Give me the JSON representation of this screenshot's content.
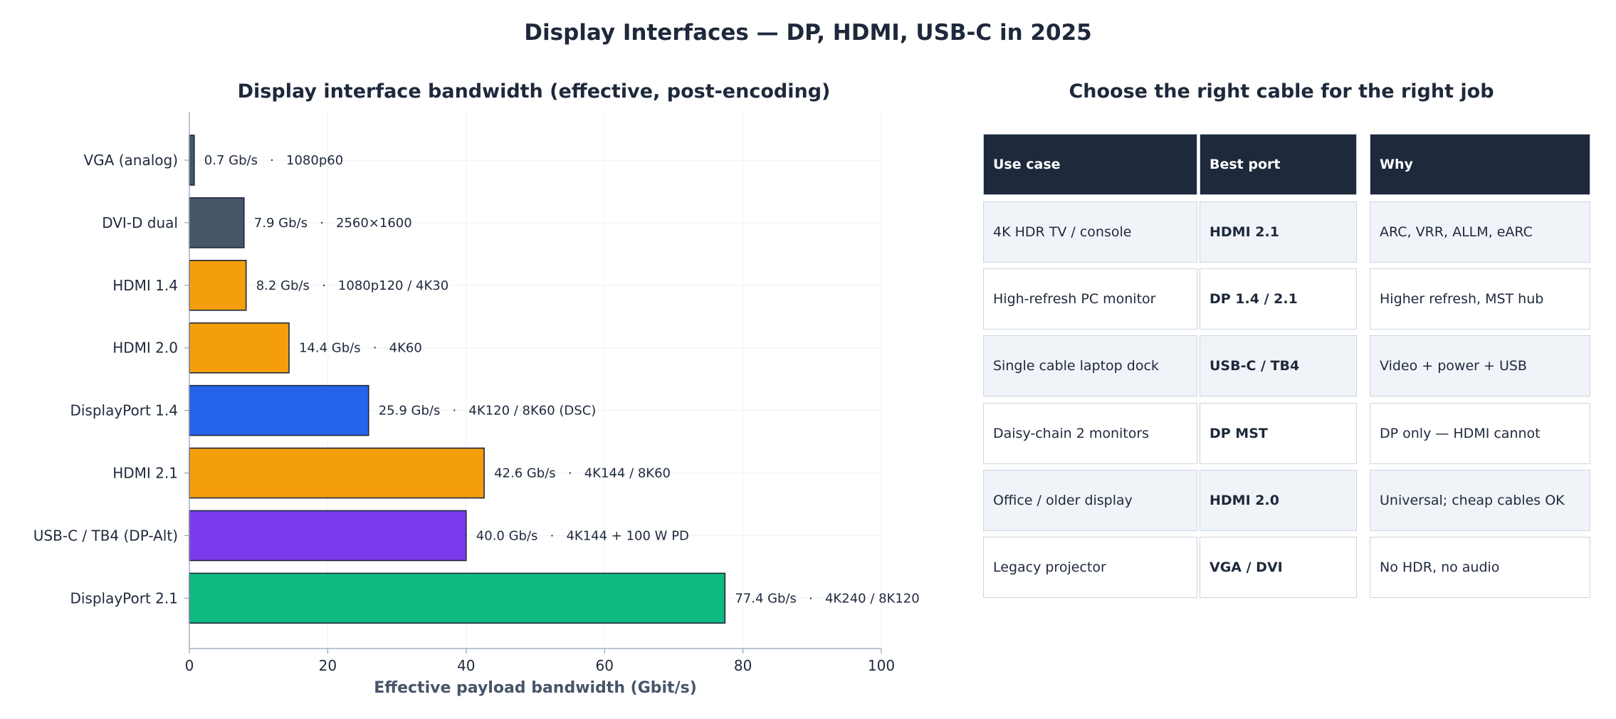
{
  "suptitle": "Display Interfaces — DP, HDMI, USB-C in 2025",
  "chart_data": {
    "type": "bar",
    "orientation": "horizontal",
    "title": "Display interface bandwidth (effective, post-encoding)",
    "xlabel": "Effective payload bandwidth (Gbit/s)",
    "ylabel": "",
    "xlim": [
      0,
      100
    ],
    "xticks": [
      "0",
      "20",
      "40",
      "60",
      "80",
      "100"
    ],
    "grid": true,
    "categories": [
      "VGA (analog)",
      "DVI-D dual",
      "HDMI 1.4",
      "HDMI 2.0",
      "DisplayPort 1.4",
      "HDMI 2.1",
      "USB-C / TB4 (DP-Alt)",
      "DisplayPort 2.1"
    ],
    "values": [
      0.7,
      7.9,
      8.2,
      14.4,
      25.9,
      42.6,
      40.0,
      77.4
    ],
    "labels": [
      "0.7 Gb/s   ·   1080p60",
      "7.9 Gb/s   ·   2560×1600",
      "8.2 Gb/s   ·   1080p120 / 4K30",
      "14.4 Gb/s   ·   4K60",
      "25.9 Gb/s   ·   4K120 / 8K60 (DSC)",
      "42.6 Gb/s   ·   4K144 / 8K60",
      "40.0 Gb/s   ·   4K144 + 100 W PD",
      "77.4 Gb/s   ·   4K240 / 8K120"
    ],
    "colors": [
      "#475569",
      "#475569",
      "#f59e0b",
      "#f59e0b",
      "#2563eb",
      "#f59e0b",
      "#7c3aed",
      "#10b981"
    ]
  },
  "table": {
    "title": "Choose the right cable for the right job",
    "headers": [
      "Use case",
      "Best port",
      "Why"
    ],
    "rows": [
      [
        "4K HDR TV / console",
        "HDMI 2.1",
        "ARC, VRR, ALLM, eARC"
      ],
      [
        "High-refresh PC monitor",
        "DP 1.4 / 2.1",
        "Higher refresh, MST hub"
      ],
      [
        "Single cable laptop dock",
        "USB-C / TB4",
        "Video + power + USB"
      ],
      [
        "Daisy-chain 2 monitors",
        "DP MST",
        "DP only — HDMI cannot"
      ],
      [
        "Office / older display",
        "HDMI 2.0",
        "Universal; cheap cables OK"
      ],
      [
        "Legacy projector",
        "VGA / DVI",
        "No HDR, no audio"
      ]
    ]
  },
  "colors": {
    "header_bg": "#1e293b",
    "alt_row_bg": "#f0f4f9",
    "border": "#cbd5e1"
  }
}
